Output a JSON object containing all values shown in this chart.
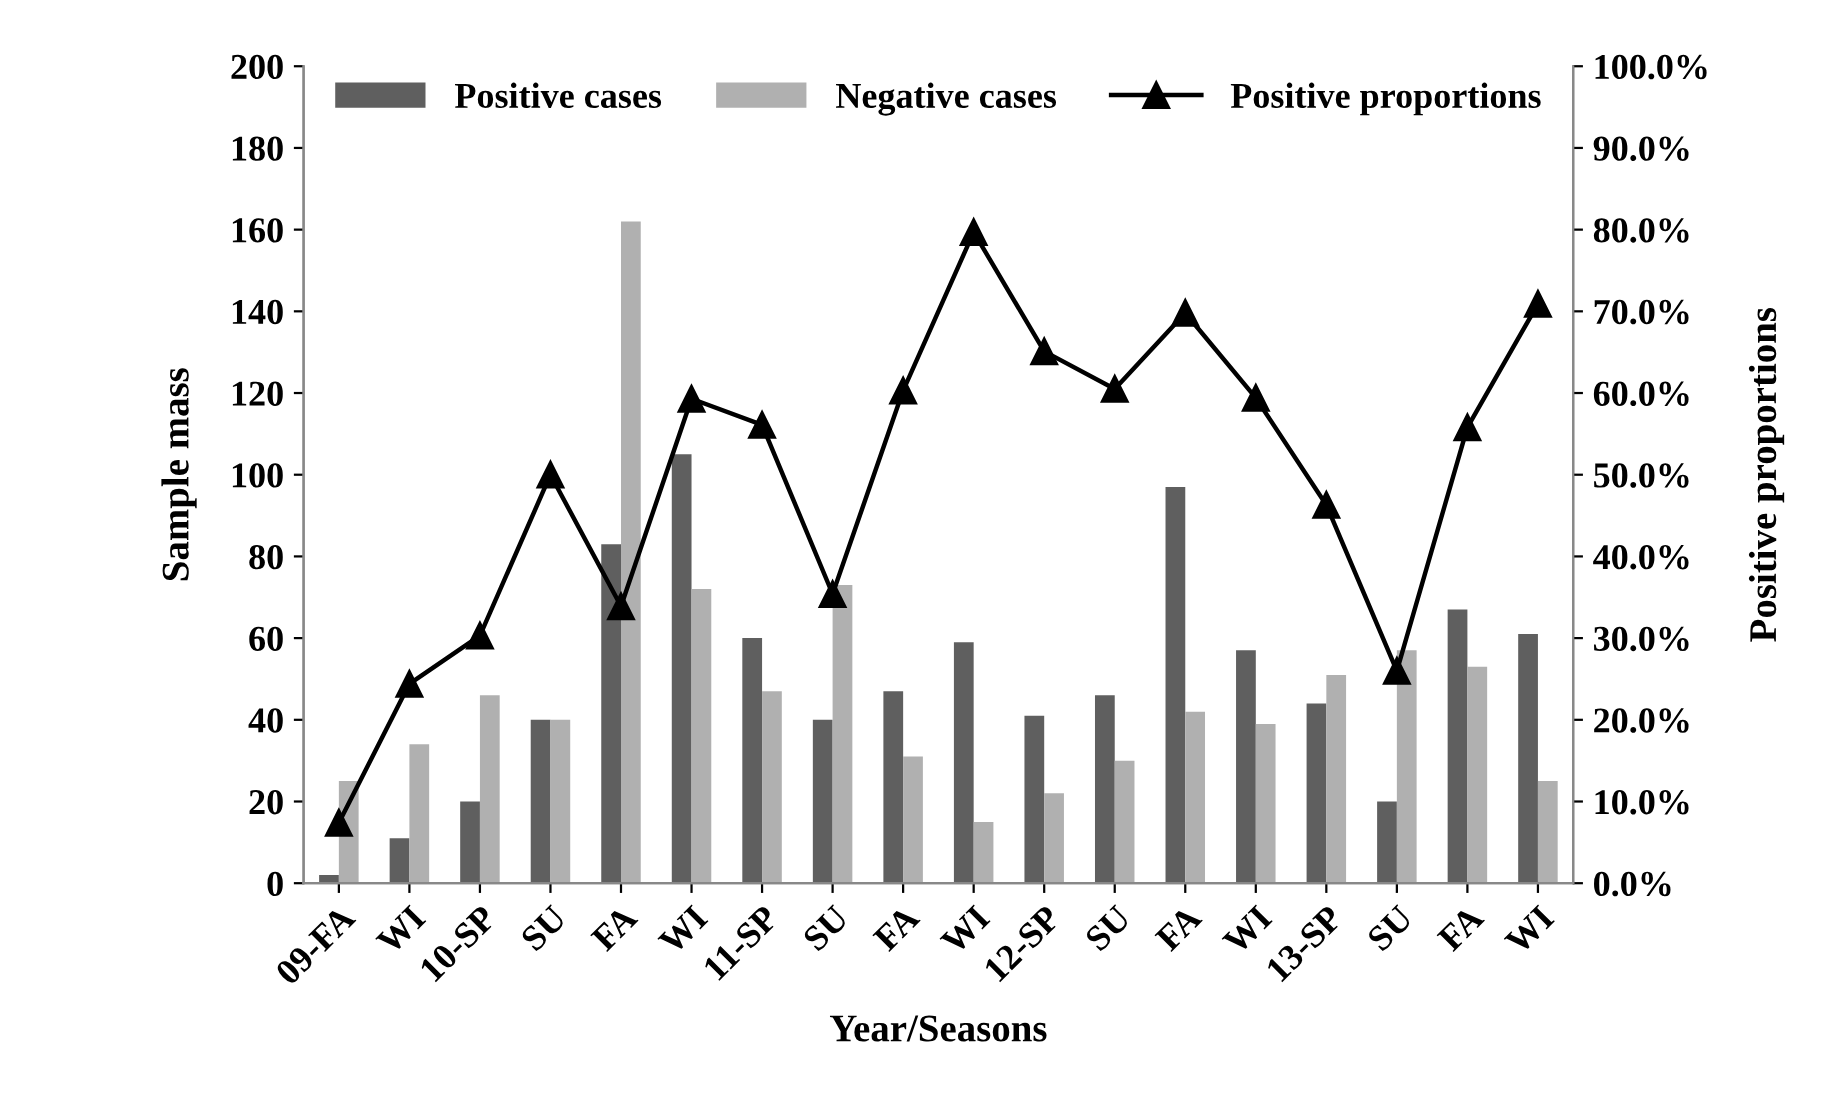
{
  "chart_data": {
    "type": "bar",
    "xlabel": "Year/Seasons",
    "ylabel": "Sample mass",
    "y2label": "Positive proportions",
    "categories": [
      "09-FA",
      "WI",
      "10-SP",
      "SU",
      "FA",
      "WI",
      "11-SP",
      "SU",
      "FA",
      "WI",
      "12-SP",
      "SU",
      "FA",
      "WI",
      "13-SP",
      "SU",
      "FA",
      "WI"
    ],
    "series": [
      {
        "name": "Positive cases",
        "color": "#5f5f5f",
        "values": [
          2,
          11,
          20,
          40,
          83,
          105,
          60,
          40,
          47,
          59,
          41,
          46,
          97,
          57,
          44,
          20,
          67,
          61
        ]
      },
      {
        "name": "Negative cases",
        "color": "#b0b0b0",
        "values": [
          25,
          34,
          46,
          40,
          162,
          72,
          47,
          73,
          31,
          15,
          22,
          30,
          42,
          39,
          51,
          57,
          53,
          25
        ]
      },
      {
        "name": "Positive proportions",
        "type": "line",
        "axis": "y2",
        "color": "#000000",
        "marker": "triangle",
        "values": [
          7.4,
          24.4,
          30.3,
          50,
          33.9,
          59.3,
          56.1,
          35.4,
          60.3,
          79.7,
          65.1,
          60.5,
          69.8,
          59.4,
          46.3,
          26,
          55.8,
          70.9
        ]
      }
    ],
    "ylim": [
      0,
      200
    ],
    "yticks": [
      0,
      20,
      40,
      60,
      80,
      100,
      120,
      140,
      160,
      180,
      200
    ],
    "y2lim": [
      0,
      100
    ],
    "y2ticks": [
      {
        "value": 0,
        "label": "0.0%"
      },
      {
        "value": 10,
        "label": "10.0%"
      },
      {
        "value": 20,
        "label": "20.0%"
      },
      {
        "value": 30,
        "label": "30.0%"
      },
      {
        "value": 40,
        "label": "40.0%"
      },
      {
        "value": 50,
        "label": "50.0%"
      },
      {
        "value": 60,
        "label": "60.0%"
      },
      {
        "value": 70,
        "label": "70.0%"
      },
      {
        "value": 80,
        "label": "80.0%"
      },
      {
        "value": 90,
        "label": "90.0%"
      },
      {
        "value": 100,
        "label": "100.0%"
      }
    ],
    "legend": "top",
    "grid": false
  }
}
